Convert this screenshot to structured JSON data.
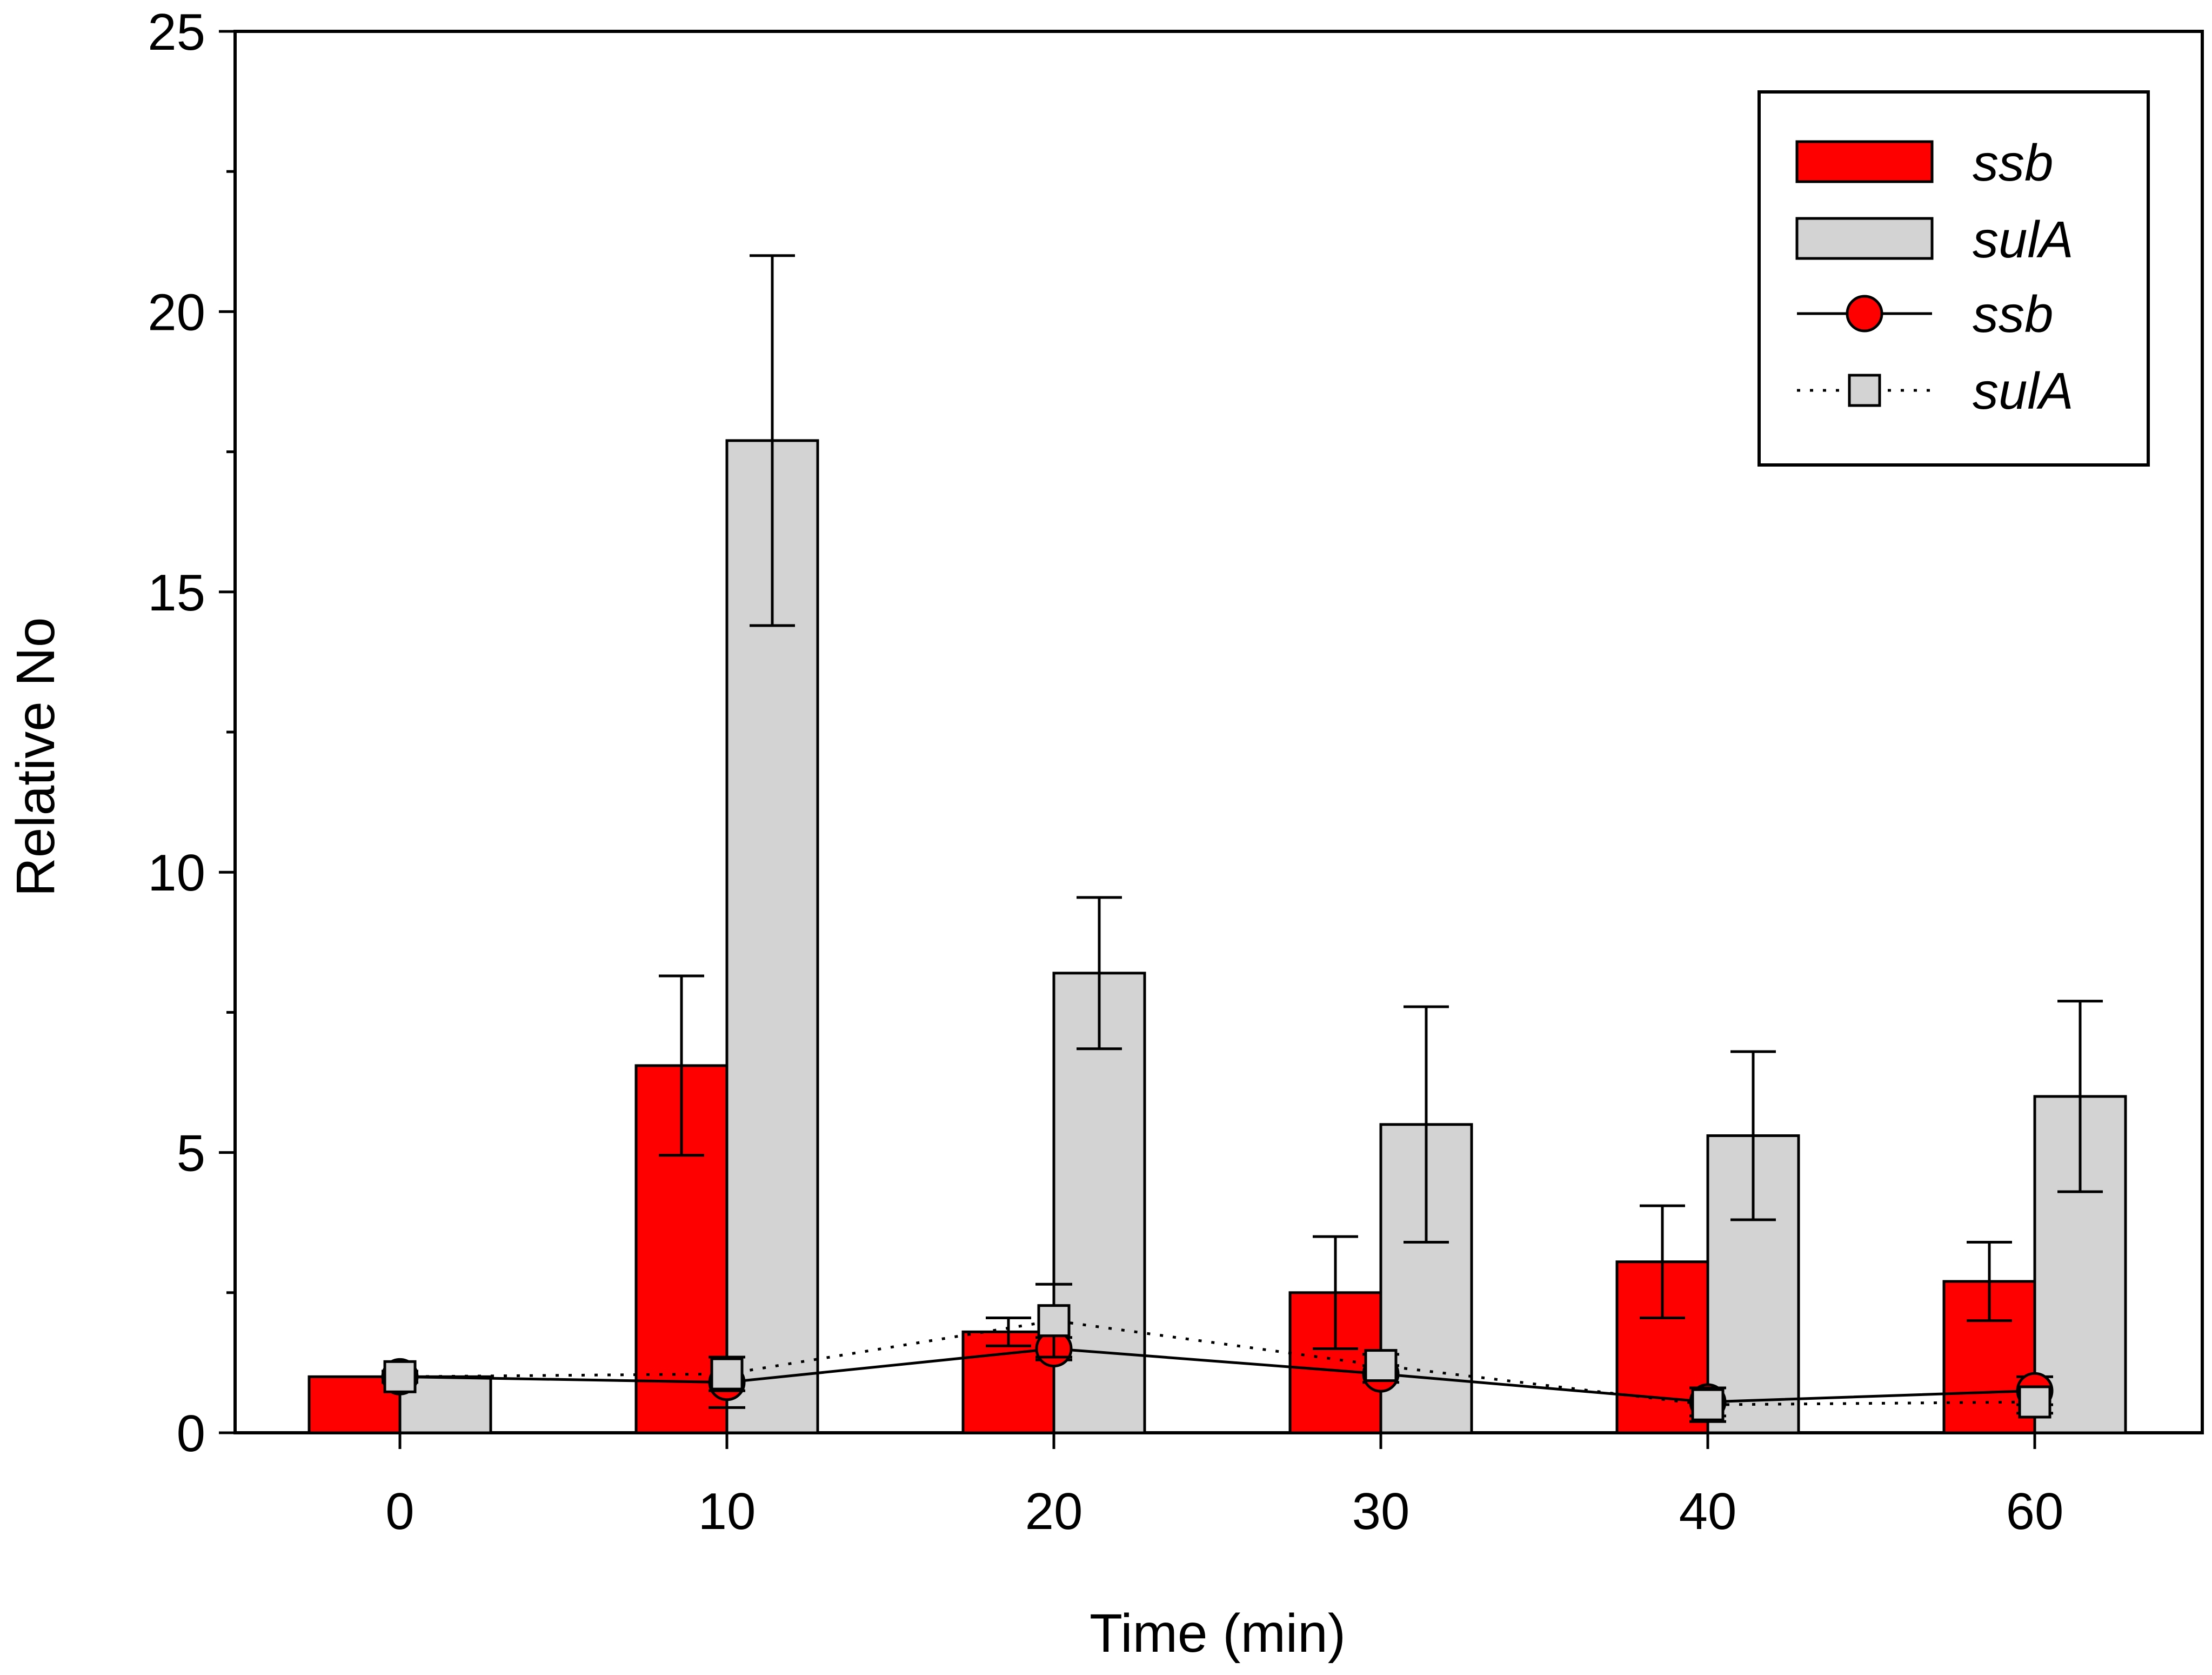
{
  "chart_data": {
    "type": "bar",
    "title": "",
    "xlabel": "Time (min)",
    "ylabel": "Relative No",
    "ylim": [
      0,
      25
    ],
    "yticks": [
      0,
      5,
      10,
      15,
      20,
      25
    ],
    "categories": [
      "0",
      "10",
      "20",
      "30",
      "40",
      "60"
    ],
    "series": [
      {
        "name": "ssb",
        "kind": "bar",
        "color": "#ff0000",
        "values": [
          1.0,
          6.55,
          1.8,
          2.5,
          3.05,
          2.7
        ],
        "errors": [
          0.0,
          1.6,
          0.25,
          1.0,
          1.0,
          0.7
        ]
      },
      {
        "name": "sulA",
        "kind": "bar",
        "color": "#d3d3d3",
        "values": [
          1.0,
          17.7,
          8.2,
          5.5,
          5.3,
          6.0
        ],
        "errors": [
          0.0,
          3.3,
          1.35,
          2.1,
          1.5,
          1.7
        ]
      },
      {
        "name": "ssb",
        "kind": "line",
        "color": "#ff0000",
        "marker": "circle",
        "line_style": "solid",
        "values": [
          1.0,
          0.9,
          1.5,
          1.05,
          0.55,
          0.75
        ],
        "errors": [
          0.1,
          0.45,
          0.2,
          0.15,
          0.25,
          0.25
        ]
      },
      {
        "name": "sulA",
        "kind": "line",
        "color": "#d3d3d3",
        "marker": "square",
        "line_style": "dotted",
        "values": [
          1.0,
          1.05,
          2.0,
          1.2,
          0.5,
          0.55
        ],
        "errors": [
          0.1,
          0.3,
          0.65,
          0.2,
          0.3,
          0.2
        ]
      }
    ],
    "legend": {
      "position": "top-right",
      "entries": [
        "ssb",
        "sulA",
        "ssb",
        "sulA"
      ]
    }
  }
}
